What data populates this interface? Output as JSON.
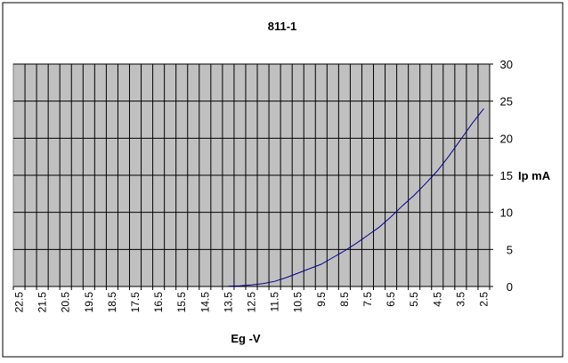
{
  "chart_data": {
    "type": "line",
    "title": "811-1",
    "xlabel": "Eg -V",
    "ylabel": "Ip mA",
    "x_categories": [
      "22.5",
      "22",
      "21.5",
      "21",
      "20.5",
      "20",
      "19.5",
      "19",
      "18.5",
      "18",
      "17.5",
      "17",
      "16.5",
      "16",
      "15.5",
      "15",
      "14.5",
      "14",
      "13.5",
      "13",
      "12.5",
      "12",
      "11.5",
      "11",
      "10.5",
      "10",
      "9.5",
      "9",
      "8.5",
      "8",
      "7.5",
      "7",
      "6.5",
      "6",
      "5.5",
      "5",
      "4.5",
      "4",
      "3.5",
      "3",
      "2.5"
    ],
    "x_tick_labels": [
      "22.5",
      "21.5",
      "20.5",
      "19.5",
      "18.5",
      "17.5",
      "16.5",
      "15.5",
      "14.5",
      "13.5",
      "12.5",
      "11.5",
      "10.5",
      "9.5",
      "8.5",
      "7.5",
      "6.5",
      "5.5",
      "4.5",
      "3.5",
      "2.5"
    ],
    "ylim": [
      0,
      30
    ],
    "y_ticks": [
      "0",
      "5",
      "10",
      "15",
      "20",
      "25",
      "30"
    ],
    "grid": true,
    "legend": "none",
    "colors": {
      "plot_background": "#c0c0c0",
      "line": "#00008b",
      "grid": "#000000"
    },
    "series": [
      {
        "x": [
          "13.5",
          "13",
          "12.5",
          "12",
          "11.5",
          "11",
          "10.5",
          "10",
          "9.5",
          "9",
          "8.5",
          "8",
          "7.5",
          "7",
          "6.5",
          "6",
          "5.5",
          "5",
          "4.5",
          "4",
          "3.5",
          "3",
          "2.5"
        ],
        "values": [
          0.05,
          0.1,
          0.2,
          0.4,
          0.7,
          1.2,
          1.8,
          2.4,
          3.0,
          3.9,
          4.8,
          5.8,
          6.9,
          8.0,
          9.4,
          10.9,
          12.3,
          13.9,
          15.6,
          17.6,
          19.8,
          22.0,
          24.0
        ]
      }
    ]
  }
}
